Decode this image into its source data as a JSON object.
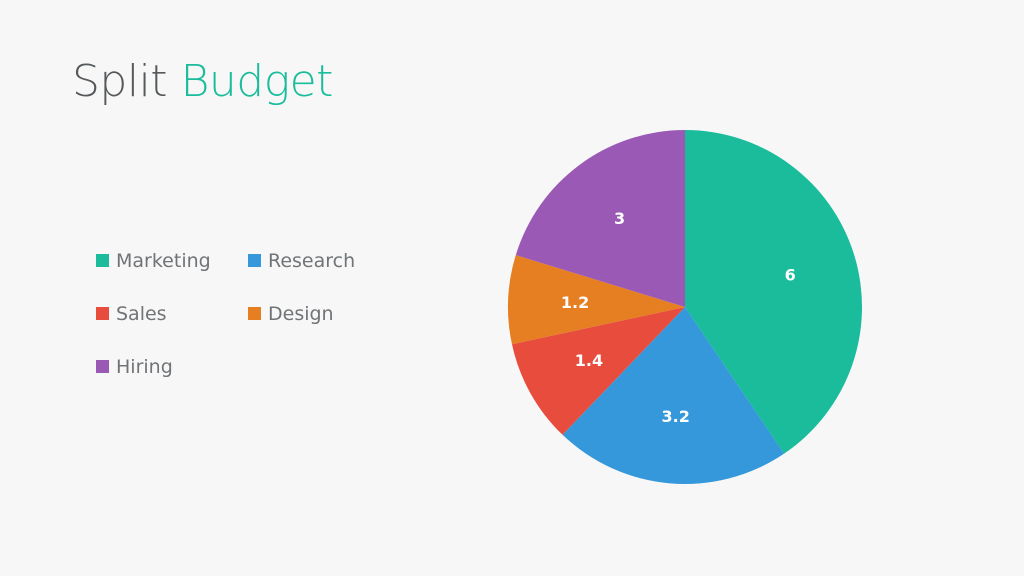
{
  "slide": {
    "title_part1": "Split",
    "title_part2": "Budget"
  },
  "colors": {
    "accent": "#1abc9c",
    "title_gray": "#55595c",
    "background": "#f7f7f7"
  },
  "chart_data": {
    "type": "pie",
    "title": "Split Budget",
    "legend_position": "left",
    "categories": [
      "Marketing",
      "Research",
      "Sales",
      "Design",
      "Hiring"
    ],
    "values": [
      6,
      3.2,
      1.4,
      1.2,
      3
    ],
    "data_labels": [
      "6",
      "3.2",
      "1.4",
      "1.2",
      "3"
    ],
    "colors": [
      "#1abc9c",
      "#3498db",
      "#e74c3c",
      "#e67e22",
      "#9b59b6"
    ]
  }
}
